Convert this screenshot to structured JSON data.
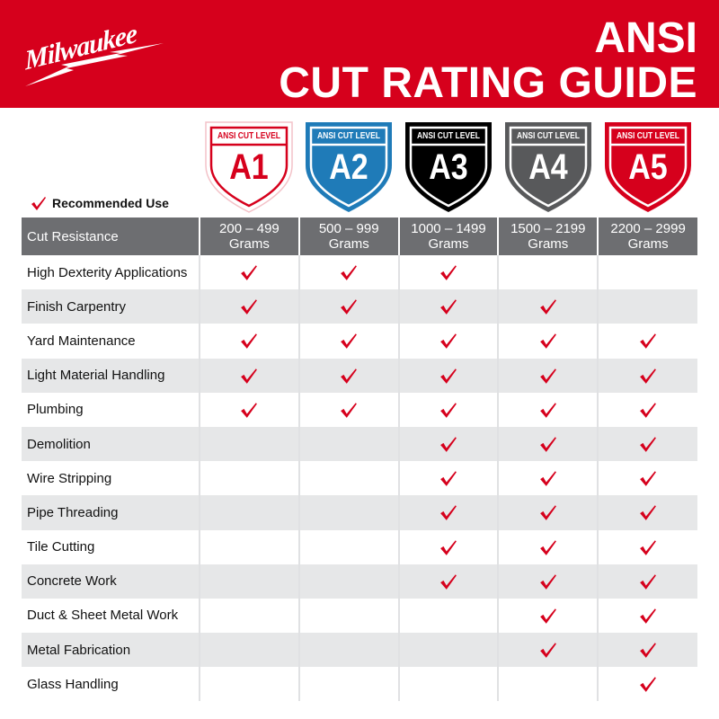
{
  "brand": {
    "logo_text": "Milwaukee",
    "color": "#d6001c"
  },
  "title": {
    "line1": "ANSI",
    "line2": "CUT RATING GUIDE"
  },
  "legend": {
    "label": "Recommended Use",
    "icon": "check-icon"
  },
  "levels": [
    {
      "caption": "ANSI CUT LEVEL",
      "level": "A1",
      "fill": "#ffffff",
      "text": "#d6001c",
      "border": "#d6001c"
    },
    {
      "caption": "ANSI CUT LEVEL",
      "level": "A2",
      "fill": "#1f7bb8",
      "text": "#ffffff",
      "border": "#ffffff"
    },
    {
      "caption": "ANSI CUT LEVEL",
      "level": "A3",
      "fill": "#000000",
      "text": "#ffffff",
      "border": "#ffffff"
    },
    {
      "caption": "ANSI CUT LEVEL",
      "level": "A4",
      "fill": "#58595b",
      "text": "#ffffff",
      "border": "#ffffff"
    },
    {
      "caption": "ANSI CUT LEVEL",
      "level": "A5",
      "fill": "#d6001c",
      "text": "#ffffff",
      "border": "#ffffff"
    }
  ],
  "table": {
    "header": [
      "Cut Resistance",
      [
        "200 – 499",
        "Grams"
      ],
      [
        "500 – 999",
        "Grams"
      ],
      [
        "1000 – 1499",
        "Grams"
      ],
      [
        "1500 – 2199",
        "Grams"
      ],
      [
        "2200 – 2999",
        "Grams"
      ]
    ],
    "rows": [
      {
        "label": "High Dexterity Applications",
        "checks": [
          true,
          true,
          true,
          false,
          false
        ]
      },
      {
        "label": "Finish Carpentry",
        "checks": [
          true,
          true,
          true,
          true,
          false
        ]
      },
      {
        "label": "Yard Maintenance",
        "checks": [
          true,
          true,
          true,
          true,
          true
        ]
      },
      {
        "label": "Light Material Handling",
        "checks": [
          true,
          true,
          true,
          true,
          true
        ]
      },
      {
        "label": "Plumbing",
        "checks": [
          true,
          true,
          true,
          true,
          true
        ]
      },
      {
        "label": "Demolition",
        "checks": [
          false,
          false,
          true,
          true,
          true
        ]
      },
      {
        "label": "Wire Stripping",
        "checks": [
          false,
          false,
          true,
          true,
          true
        ]
      },
      {
        "label": "Pipe Threading",
        "checks": [
          false,
          false,
          true,
          true,
          true
        ]
      },
      {
        "label": "Tile Cutting",
        "checks": [
          false,
          false,
          true,
          true,
          true
        ]
      },
      {
        "label": "Concrete Work",
        "checks": [
          false,
          false,
          true,
          true,
          true
        ]
      },
      {
        "label": "Duct & Sheet Metal Work",
        "checks": [
          false,
          false,
          false,
          true,
          true
        ]
      },
      {
        "label": "Metal Fabrication",
        "checks": [
          false,
          false,
          false,
          true,
          true
        ]
      },
      {
        "label": "Glass Handling",
        "checks": [
          false,
          false,
          false,
          false,
          true
        ]
      }
    ]
  },
  "check_color": "#d6001c"
}
